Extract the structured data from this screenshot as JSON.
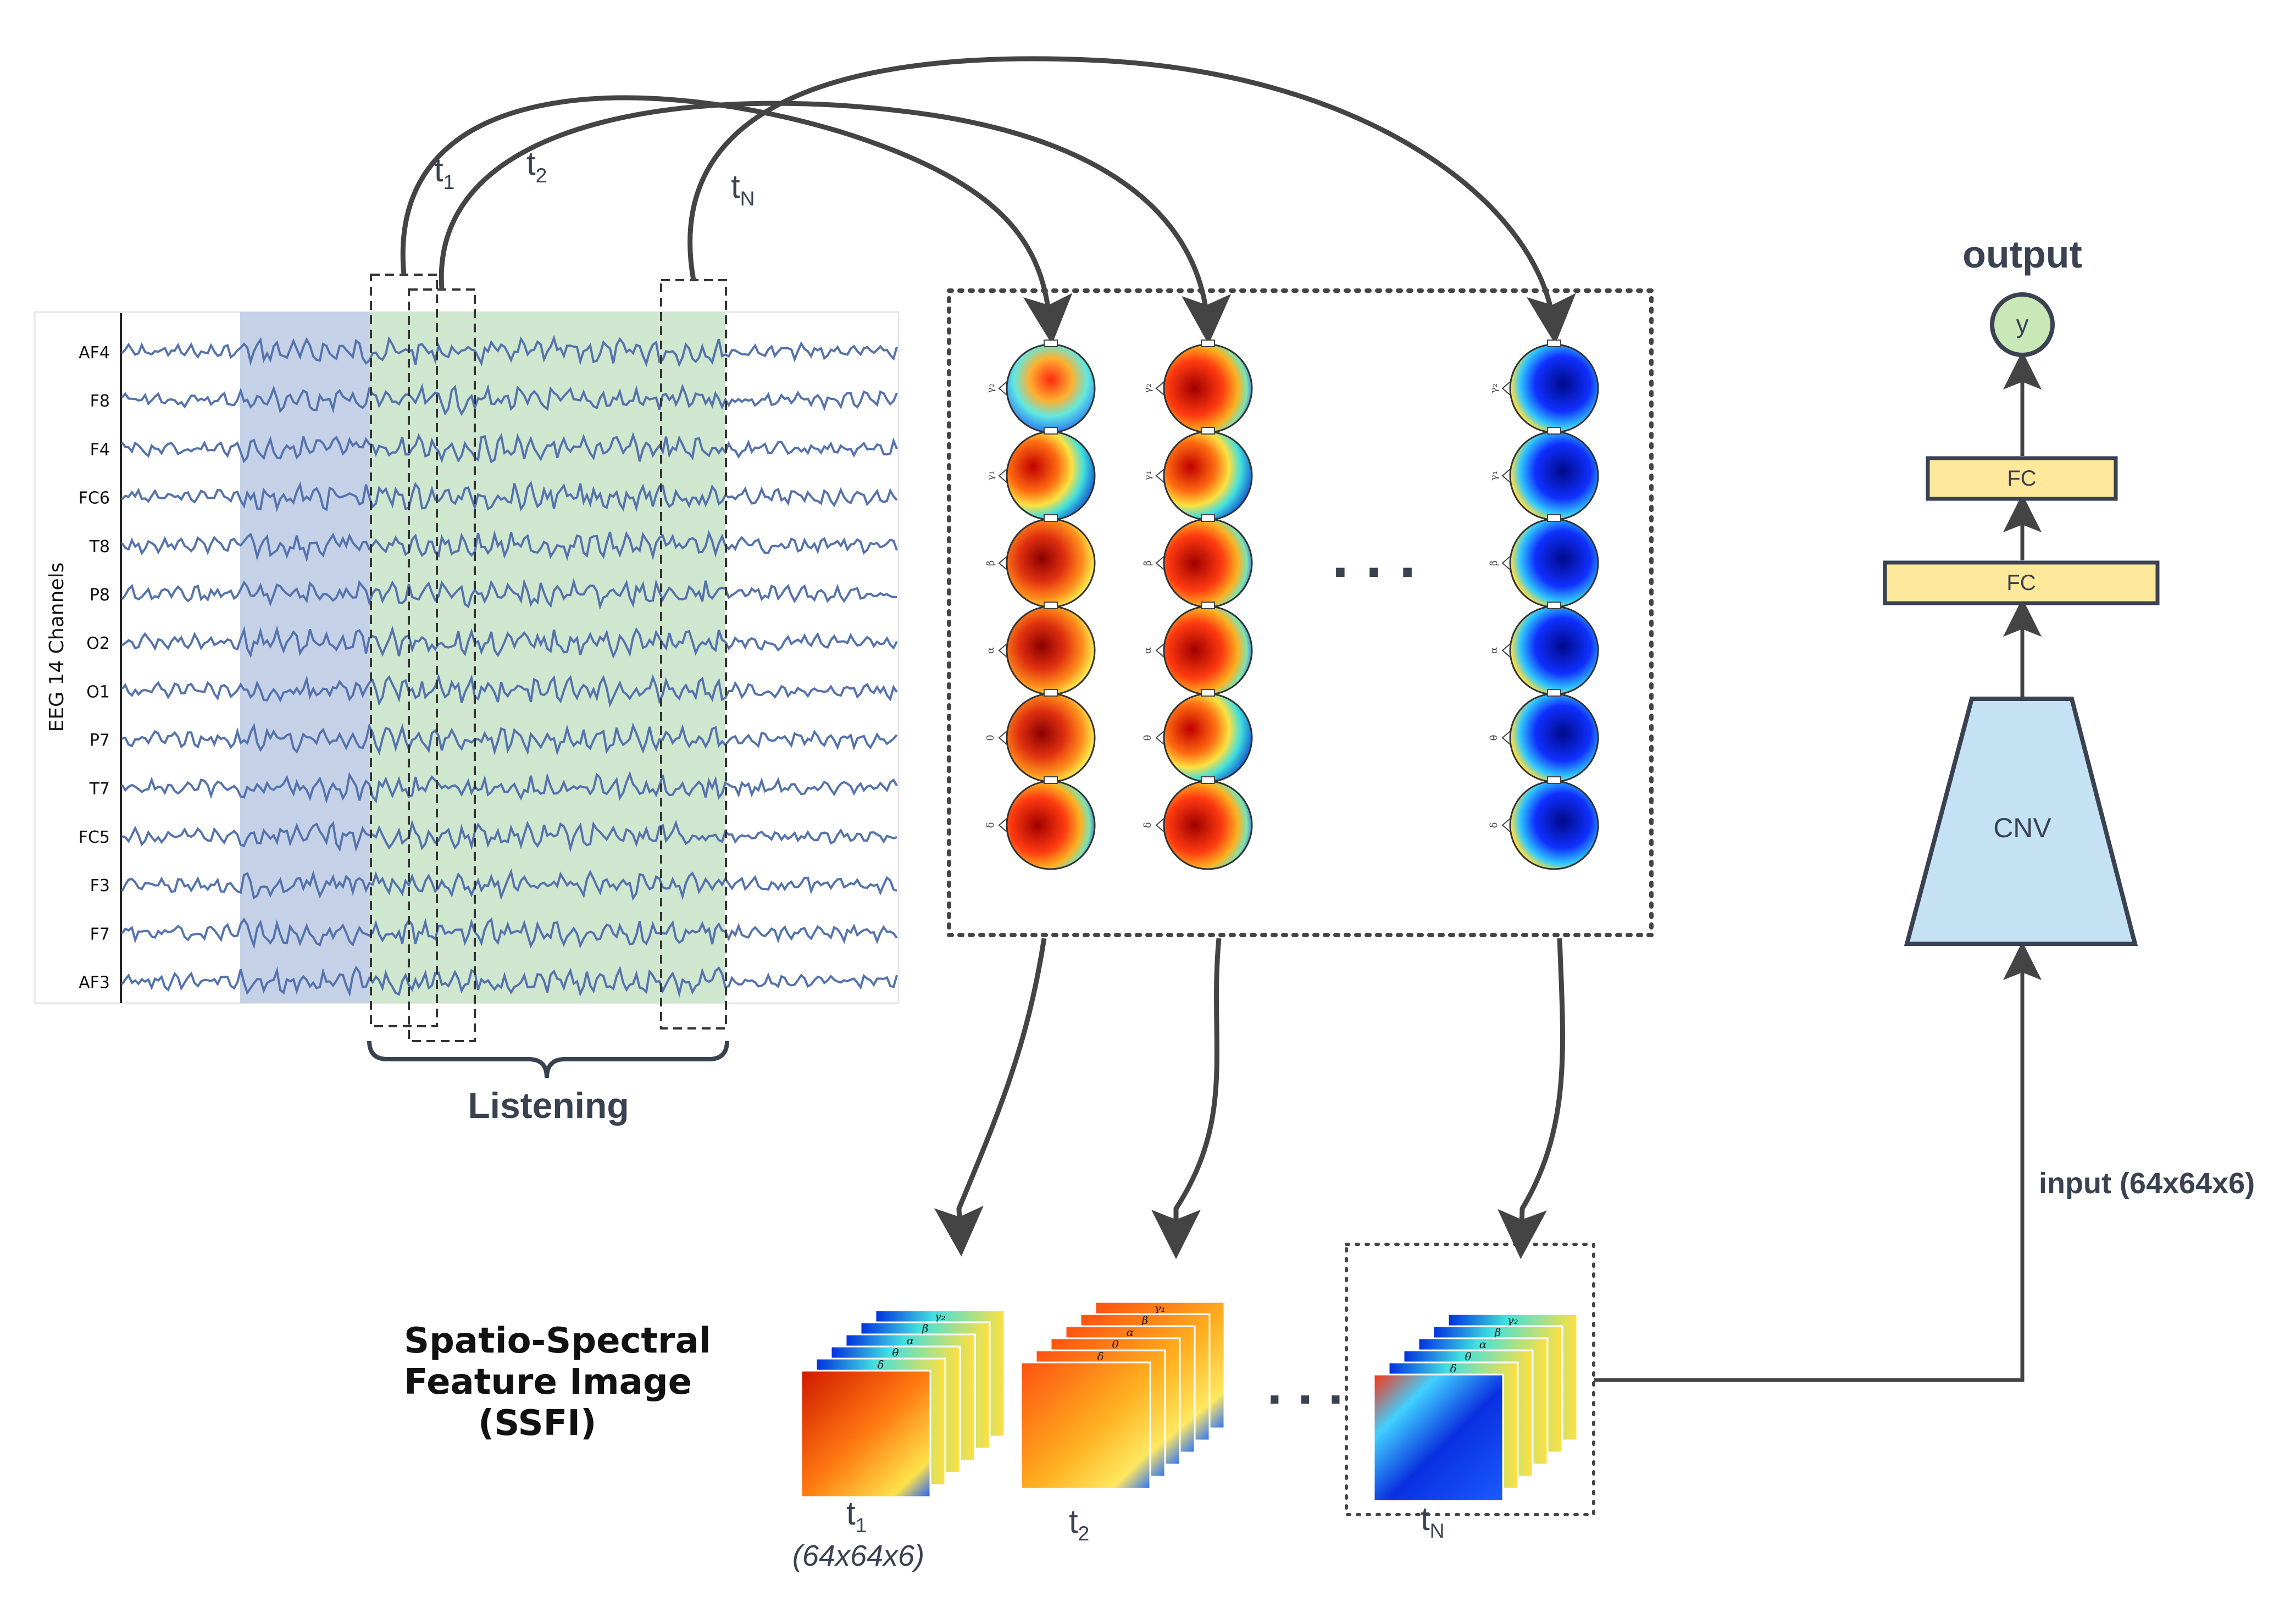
{
  "eeg": {
    "axis_label": "EEG 14 Channels",
    "channels": [
      "AF4",
      "F8",
      "F4",
      "FC6",
      "T8",
      "P8",
      "O2",
      "O1",
      "P7",
      "T7",
      "FC5",
      "F3",
      "F7",
      "AF3"
    ],
    "segment_label": "Listening"
  },
  "time_labels": {
    "t1": {
      "main": "t",
      "sub": "1"
    },
    "t2": {
      "main": "t",
      "sub": "2"
    },
    "tN": {
      "main": "t",
      "sub": "N"
    }
  },
  "topomap": {
    "bands": [
      "γ₂",
      "γ₁",
      "β",
      "α",
      "θ",
      "δ"
    ],
    "ellipsis": ". . ."
  },
  "ssfi": {
    "title_lines": [
      "Spatio-Spectral",
      "Feature Image",
      "(SSFI)"
    ],
    "size_label": "(64x64x6)",
    "stack_bands": [
      "γ₂",
      "β",
      "α",
      "θ",
      "δ"
    ],
    "stack_bands_alt": [
      "γ₁",
      "β",
      "α",
      "θ",
      "δ"
    ],
    "ellipsis": ". . ."
  },
  "network": {
    "output_title": "output",
    "output_node": "y",
    "fc1": "FC",
    "fc2": "FC",
    "cnv": "CNV",
    "input_label": "input (64x64x6)"
  },
  "colors": {
    "wave": "#5472ad",
    "blue_region": "#c5d1e6",
    "green_region": "#cfe6cf",
    "arrow": "#444444",
    "fc_fill": "#fde89c",
    "cnv_fill": "#c5e2f5",
    "output_fill": "#c8e8b8"
  }
}
